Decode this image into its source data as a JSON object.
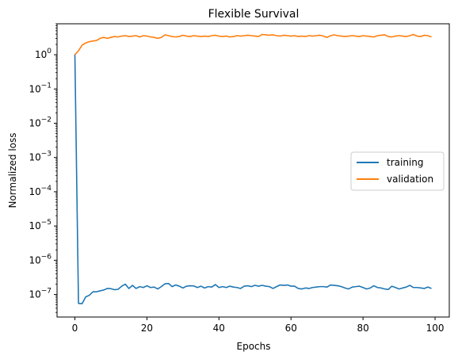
{
  "chart_data": {
    "type": "line",
    "title": "Flexible Survival",
    "xlabel": "Epochs",
    "ylabel": "Normalized loss",
    "yscale": "log",
    "xlim": [
      -4.95,
      103.95
    ],
    "ylim": [
      2.2e-08,
      8.0
    ],
    "xticks": [
      0,
      20,
      40,
      60,
      80,
      100
    ],
    "xtick_labels": [
      "0",
      "20",
      "40",
      "60",
      "80",
      "100"
    ],
    "yticks": [
      1e-07,
      1e-06,
      1e-05,
      0.0001,
      0.001,
      0.01,
      0.1,
      1
    ],
    "ytick_labels": [
      {
        "base": "10",
        "exp": "−7"
      },
      {
        "base": "10",
        "exp": "−6"
      },
      {
        "base": "10",
        "exp": "−5"
      },
      {
        "base": "10",
        "exp": "−4"
      },
      {
        "base": "10",
        "exp": "−3"
      },
      {
        "base": "10",
        "exp": "−2"
      },
      {
        "base": "10",
        "exp": "−1"
      },
      {
        "base": "10",
        "exp": "0"
      }
    ],
    "grid": false,
    "legend": "center-right",
    "x": [
      0,
      1,
      2,
      3,
      4,
      5,
      6,
      7,
      8,
      9,
      10,
      11,
      12,
      13,
      14,
      15,
      16,
      17,
      18,
      19,
      20,
      21,
      22,
      23,
      24,
      25,
      26,
      27,
      28,
      29,
      30,
      31,
      32,
      33,
      34,
      35,
      36,
      37,
      38,
      39,
      40,
      41,
      42,
      43,
      44,
      45,
      46,
      47,
      48,
      49,
      50,
      51,
      52,
      53,
      54,
      55,
      56,
      57,
      58,
      59,
      60,
      61,
      62,
      63,
      64,
      65,
      66,
      67,
      68,
      69,
      70,
      71,
      72,
      73,
      74,
      75,
      76,
      77,
      78,
      79,
      80,
      81,
      82,
      83,
      84,
      85,
      86,
      87,
      88,
      89,
      90,
      91,
      92,
      93,
      94,
      95,
      96,
      97,
      98,
      99
    ],
    "series": [
      {
        "name": "training",
        "color": "#1f77b4",
        "values": [
          1.0,
          5.5e-08,
          5.4e-08,
          8.5e-08,
          9.5e-08,
          1.2e-07,
          1.2e-07,
          1.28e-07,
          1.35e-07,
          1.5e-07,
          1.48e-07,
          1.38e-07,
          1.42e-07,
          1.75e-07,
          2e-07,
          1.5e-07,
          1.85e-07,
          1.5e-07,
          1.7e-07,
          1.6e-07,
          1.8e-07,
          1.6e-07,
          1.65e-07,
          1.45e-07,
          1.7e-07,
          2.05e-07,
          2.1e-07,
          1.7e-07,
          1.9e-07,
          1.75e-07,
          1.55e-07,
          1.75e-07,
          1.8e-07,
          1.78e-07,
          1.6e-07,
          1.75e-07,
          1.55e-07,
          1.7e-07,
          1.65e-07,
          1.95e-07,
          1.6e-07,
          1.7e-07,
          1.6e-07,
          1.75e-07,
          1.65e-07,
          1.6e-07,
          1.5e-07,
          1.75e-07,
          1.8e-07,
          1.7e-07,
          1.85e-07,
          1.75e-07,
          1.85e-07,
          1.75e-07,
          1.7e-07,
          1.5e-07,
          1.7e-07,
          1.9e-07,
          1.85e-07,
          1.9e-07,
          1.75e-07,
          1.75e-07,
          1.5e-07,
          1.45e-07,
          1.55e-07,
          1.5e-07,
          1.6e-07,
          1.65e-07,
          1.7e-07,
          1.7e-07,
          1.65e-07,
          1.9e-07,
          1.85e-07,
          1.8e-07,
          1.7e-07,
          1.55e-07,
          1.45e-07,
          1.65e-07,
          1.7e-07,
          1.75e-07,
          1.6e-07,
          1.45e-07,
          1.55e-07,
          1.8e-07,
          1.6e-07,
          1.55e-07,
          1.45e-07,
          1.4e-07,
          1.75e-07,
          1.6e-07,
          1.45e-07,
          1.55e-07,
          1.65e-07,
          1.85e-07,
          1.6e-07,
          1.6e-07,
          1.55e-07,
          1.5e-07,
          1.65e-07,
          1.5e-07
        ]
      },
      {
        "name": "validation",
        "color": "#ff7f0e",
        "values": [
          1.0,
          1.3,
          1.9,
          2.2,
          2.4,
          2.5,
          2.6,
          3.0,
          3.2,
          3.0,
          3.2,
          3.4,
          3.3,
          3.5,
          3.6,
          3.4,
          3.5,
          3.6,
          3.3,
          3.6,
          3.5,
          3.3,
          3.2,
          3.0,
          3.2,
          3.8,
          3.6,
          3.4,
          3.3,
          3.4,
          3.7,
          3.5,
          3.4,
          3.6,
          3.5,
          3.4,
          3.5,
          3.4,
          3.6,
          3.7,
          3.5,
          3.4,
          3.5,
          3.3,
          3.4,
          3.6,
          3.5,
          3.6,
          3.7,
          3.6,
          3.5,
          3.4,
          3.9,
          3.8,
          3.7,
          3.8,
          3.6,
          3.5,
          3.7,
          3.6,
          3.5,
          3.6,
          3.4,
          3.5,
          3.4,
          3.6,
          3.5,
          3.6,
          3.7,
          3.5,
          3.2,
          3.6,
          3.8,
          3.6,
          3.5,
          3.4,
          3.5,
          3.6,
          3.5,
          3.4,
          3.6,
          3.5,
          3.4,
          3.3,
          3.6,
          3.7,
          3.8,
          3.4,
          3.3,
          3.5,
          3.6,
          3.5,
          3.4,
          3.6,
          3.9,
          3.5,
          3.4,
          3.7,
          3.6,
          3.3
        ]
      }
    ]
  }
}
